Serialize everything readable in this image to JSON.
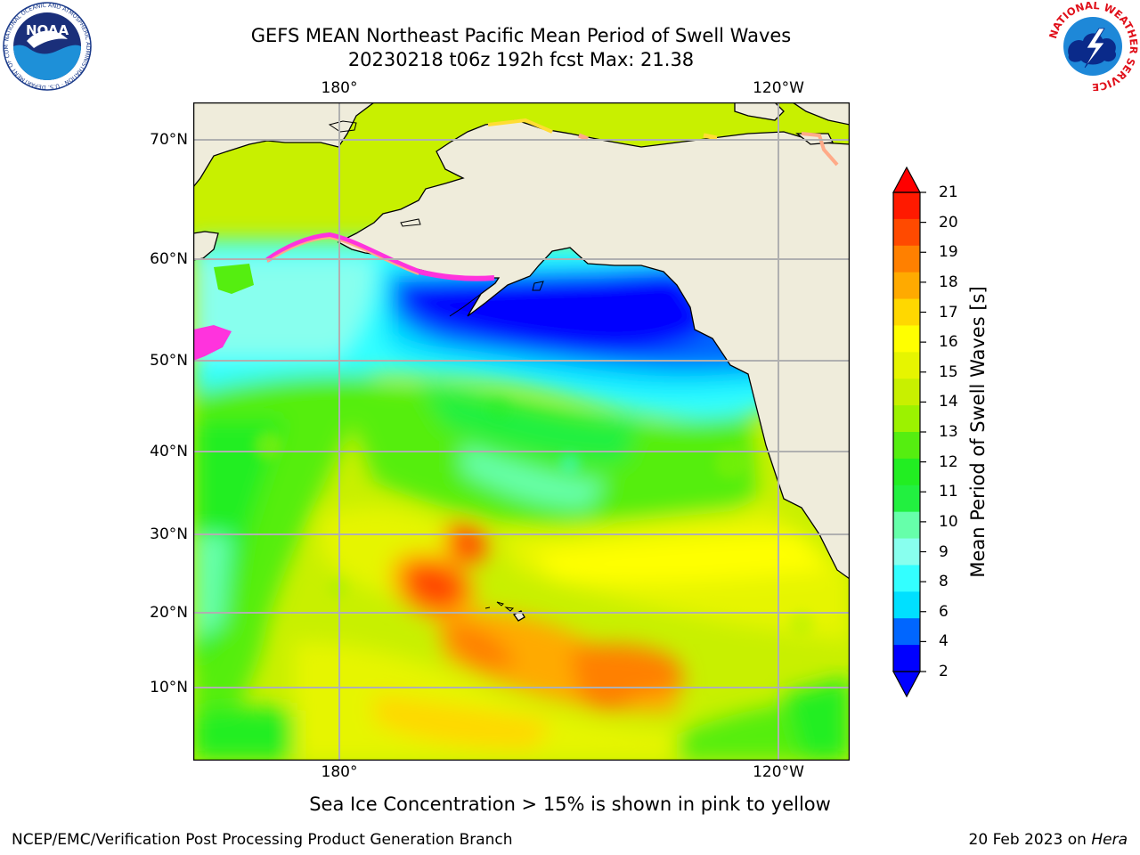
{
  "title": {
    "line1": "GEFS MEAN Northeast Pacific Mean Period of Swell Waves",
    "line2": "20230218 t06z 192h fcst   Max: 21.38"
  },
  "axes": {
    "lon_top": [
      "180°",
      "120°W"
    ],
    "lon_bottom": [
      "180°",
      "120°W"
    ],
    "lat": [
      "70°N",
      "60°N",
      "50°N",
      "40°N",
      "30°N",
      "20°N",
      "10°N"
    ]
  },
  "colorbar": {
    "title": "Mean Period of Swell Waves [s]",
    "ticks": [
      "21",
      "20",
      "19",
      "18",
      "17",
      "16",
      "15",
      "14",
      "13",
      "12",
      "11",
      "10",
      "9",
      "8",
      "6",
      "4",
      "2"
    ],
    "colors": [
      "#ff1a00",
      "#ff4a00",
      "#ff8000",
      "#ffaa00",
      "#ffd800",
      "#ffff00",
      "#e6f500",
      "#c8f000",
      "#9cf200",
      "#55ee10",
      "#22ee22",
      "#22f040",
      "#66ffaa",
      "#88ffee",
      "#33ffff",
      "#00e0ff",
      "#0066ff",
      "#0000ff"
    ],
    "over_color": "#ff0000",
    "under_color": "#0000ff"
  },
  "map": {
    "land_color": "#efecdb",
    "grid_color": "#b0b0b0",
    "ice_colors": [
      "#ff33dd",
      "#ffaa88",
      "#ffdd33"
    ]
  },
  "note": "Sea Ice Concentration > 15% is shown in pink to yellow",
  "footer": {
    "left": "NCEP/EMC/Verification Post Processing Product Generation Branch",
    "right_prefix": "20 Feb 2023 on ",
    "right_machine": "Hera"
  },
  "logos": {
    "noaa": {
      "text": "NOAA",
      "ring_text": "NATIONAL OCEANIC AND ATMOSPHERIC ADMINISTRATION · U.S. DEPARTMENT OF COMMERCE"
    },
    "nws": {
      "ring_text": "NATIONAL WEATHER SERVICE"
    }
  }
}
